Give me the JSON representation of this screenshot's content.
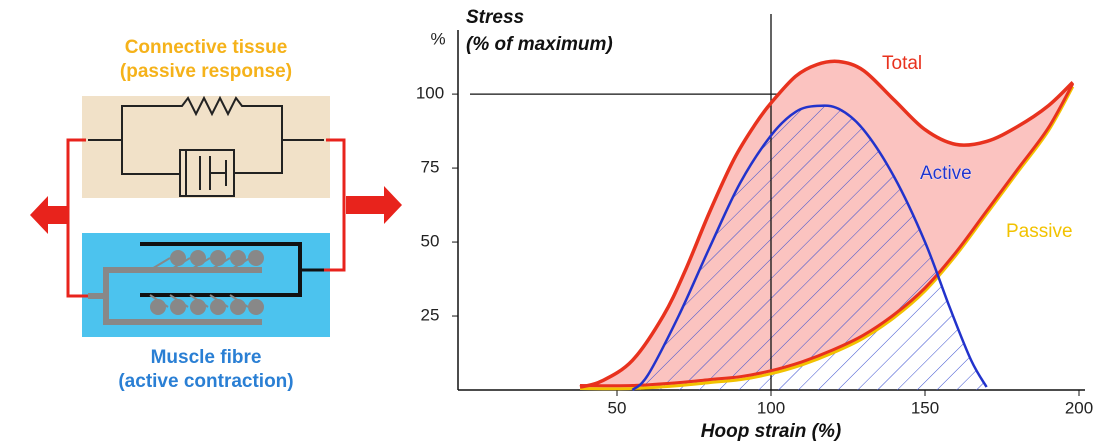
{
  "diagram": {
    "connective_label": [
      "Connective tissue",
      "(passive response)"
    ],
    "muscle_label": [
      "Muscle fibre",
      "(active contraction)"
    ]
  },
  "chart_data": {
    "type": "line",
    "title": "Stress",
    "subtitle": "(% of maximum)",
    "y_unit": "%",
    "x_label": "Hoop strain (%)",
    "xlim": [
      0,
      200
    ],
    "ylim": [
      0,
      122
    ],
    "xticks": [
      50,
      100,
      150,
      200
    ],
    "yticks": [
      25,
      50,
      75,
      100
    ],
    "reference_x": 100,
    "reference_y": 100,
    "series": [
      {
        "name": "Total",
        "color": "#e8321e",
        "fill": "#fbc3c0",
        "x": [
          38,
          45,
          55,
          65,
          72,
          80,
          88,
          95,
          100,
          108,
          115,
          122,
          130,
          140,
          150,
          160,
          170,
          180,
          190,
          198
        ],
        "values": [
          1,
          3,
          10,
          25,
          40,
          60,
          78,
          90,
          97,
          106,
          110,
          111,
          108,
          98,
          88,
          83,
          84,
          89,
          96,
          104
        ]
      },
      {
        "name": "Active",
        "color": "#2233cc",
        "x": [
          55,
          60,
          70,
          80,
          90,
          100,
          108,
          115,
          122,
          130,
          140,
          150,
          158,
          165,
          170
        ],
        "values": [
          0,
          5,
          25,
          48,
          70,
          86,
          94,
          96,
          95,
          88,
          72,
          50,
          28,
          10,
          1
        ]
      },
      {
        "name": "Passive",
        "color": "#f2c200",
        "x": [
          38,
          55,
          70,
          80,
          90,
          100,
          110,
          120,
          130,
          140,
          150,
          160,
          170,
          180,
          190,
          198
        ],
        "values": [
          1,
          1,
          2,
          3,
          4,
          6,
          9,
          13,
          18,
          25,
          34,
          46,
          60,
          74,
          88,
          103
        ]
      }
    ]
  }
}
